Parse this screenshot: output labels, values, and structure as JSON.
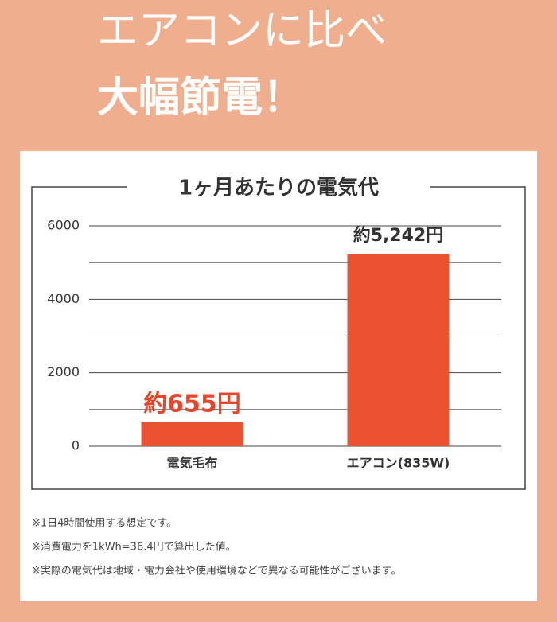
{
  "headline": [
    "エアコンに比べ",
    "大幅節電！"
  ],
  "chart_data": {
    "type": "bar",
    "title": "1ヶ月あたりの電気代",
    "categories": [
      "電気毛布",
      "エアコン(835W)"
    ],
    "values": [
      655,
      5242
    ],
    "value_labels": [
      "約655円",
      "約5,242円"
    ],
    "color": "#ea5232",
    "ylim": [
      0,
      6000
    ],
    "yticks": [
      0,
      2000,
      4000,
      6000
    ],
    "minor_yticks": [
      1000,
      3000,
      5000
    ],
    "grid": true
  },
  "notes": [
    "※1日4時間使用する想定です。",
    "※消費電力を1kWh=36.4円で算出した値。",
    "※実際の電気代は地域・電力会社や使用環境などで異なる可能性がございます。"
  ]
}
